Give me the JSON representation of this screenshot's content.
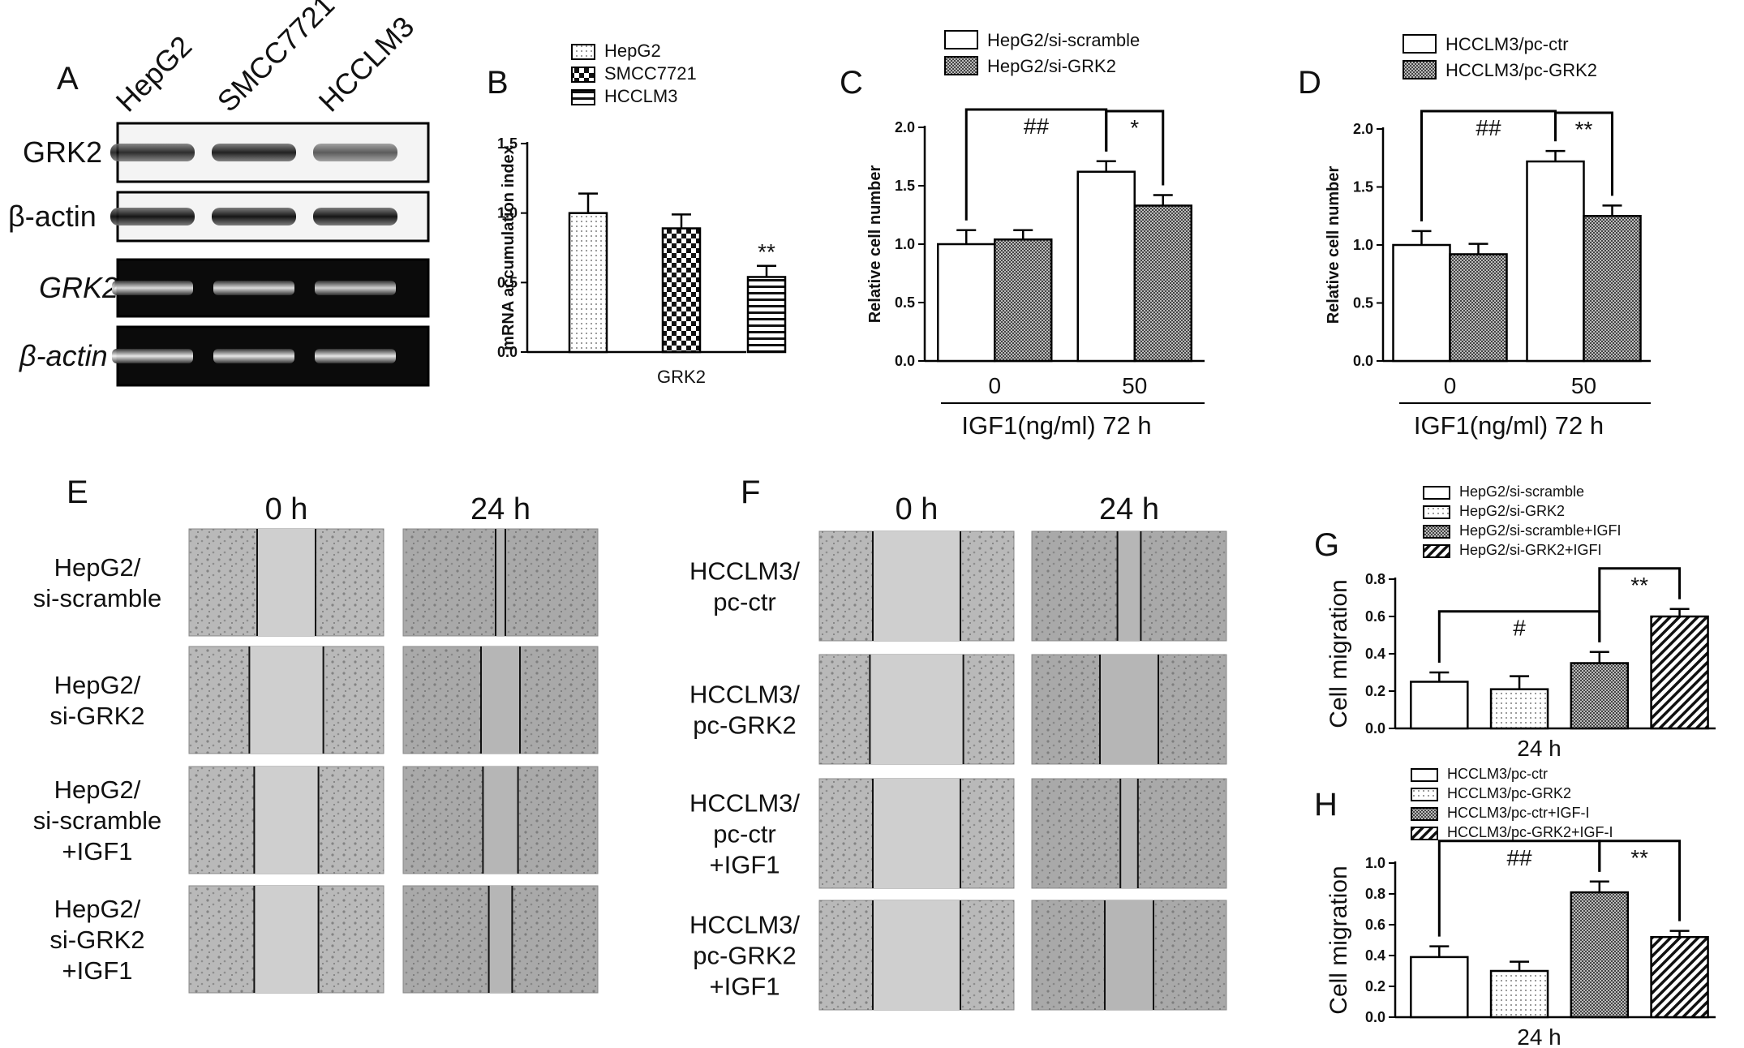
{
  "panel_a": {
    "letter": "A",
    "lanes": [
      "HepG2",
      "SMCC7721",
      "HCCLM3"
    ],
    "rows": [
      {
        "label": "GRK2",
        "italic": false,
        "kind": "western",
        "intensity": [
          0.85,
          0.9,
          0.65
        ]
      },
      {
        "label": "β-actin",
        "italic": false,
        "kind": "western",
        "intensity": [
          0.95,
          0.95,
          0.95
        ]
      },
      {
        "label": "GRK2",
        "italic": true,
        "kind": "pcr",
        "intensity": [
          0.9,
          0.9,
          0.85
        ]
      },
      {
        "label": "β-actin",
        "italic": true,
        "kind": "pcr",
        "intensity": [
          0.95,
          0.95,
          0.95
        ]
      }
    ]
  },
  "chart_data": [
    {
      "id": "B",
      "letter": "B",
      "type": "bar",
      "ylabel": "mRNA accumulation index",
      "ylim": [
        0,
        1.5
      ],
      "yticks": [
        "0.0",
        "0.5",
        "1.0",
        "1.5"
      ],
      "category_label": "GRK2",
      "legend": [
        "HepG2",
        "SMCC7721",
        "HCCLM3"
      ],
      "series": [
        {
          "name": "HepG2",
          "values": [
            1.0
          ],
          "err": [
            0.14
          ],
          "fill": "dots"
        },
        {
          "name": "SMCC7721",
          "values": [
            0.89
          ],
          "err": [
            0.1
          ],
          "fill": "check"
        },
        {
          "name": "HCCLM3",
          "values": [
            0.54
          ],
          "err": [
            0.08
          ],
          "fill": "hstripe"
        }
      ],
      "annotations": [
        {
          "text": "**",
          "series": 2
        }
      ]
    },
    {
      "id": "C",
      "letter": "C",
      "type": "bar",
      "ylabel": "Relative cell number",
      "ylim": [
        0,
        2.0
      ],
      "yticks": [
        "0.0",
        "0.5",
        "1.0",
        "1.5",
        "2.0"
      ],
      "categories": [
        "0",
        "50"
      ],
      "xlabel": "IGF1(ng/ml)  72 h",
      "legend": [
        "HepG2/si-scramble",
        "HepG2/si-GRK2"
      ],
      "series": [
        {
          "name": "HepG2/si-scramble",
          "values": [
            1.0,
            1.62
          ],
          "err": [
            0.12,
            0.09
          ],
          "fill": "white"
        },
        {
          "name": "HepG2/si-GRK2",
          "values": [
            1.04,
            1.33
          ],
          "err": [
            0.08,
            0.09
          ],
          "fill": "dense"
        }
      ],
      "brackets": [
        {
          "text": "##",
          "from": [
            0,
            0
          ],
          "to": [
            1,
            0
          ]
        },
        {
          "text": "*",
          "from": [
            1,
            0
          ],
          "to": [
            1,
            1
          ]
        }
      ]
    },
    {
      "id": "D",
      "letter": "D",
      "type": "bar",
      "ylabel": "Relative cell number",
      "ylim": [
        0,
        2.0
      ],
      "yticks": [
        "0.0",
        "0.5",
        "1.0",
        "1.5",
        "2.0"
      ],
      "categories": [
        "0",
        "50"
      ],
      "xlabel": "IGF1(ng/ml)  72 h",
      "legend": [
        "HCCLM3/pc-ctr",
        "HCCLM3/pc-GRK2"
      ],
      "series": [
        {
          "name": "HCCLM3/pc-ctr",
          "values": [
            1.0,
            1.72
          ],
          "err": [
            0.12,
            0.09
          ],
          "fill": "white"
        },
        {
          "name": "HCCLM3/pc-GRK2",
          "values": [
            0.92,
            1.25
          ],
          "err": [
            0.09,
            0.09
          ],
          "fill": "dense"
        }
      ],
      "brackets": [
        {
          "text": "##",
          "from": [
            0,
            0
          ],
          "to": [
            1,
            0
          ]
        },
        {
          "text": "**",
          "from": [
            1,
            0
          ],
          "to": [
            1,
            1
          ]
        }
      ]
    },
    {
      "id": "G",
      "letter": "G",
      "type": "bar",
      "ylabel": "Cell migration",
      "ylim": [
        0,
        0.8
      ],
      "yticks": [
        "0.0",
        "0.2",
        "0.4",
        "0.6",
        "0.8"
      ],
      "xlabel": "24 h",
      "legend": [
        "HepG2/si-scramble",
        "HepG2/si-GRK2",
        "HepG2/si-scramble+IGFI",
        "HepG2/si-GRK2+IGFI"
      ],
      "series": [
        {
          "name": "HepG2/si-scramble",
          "values": [
            0.25
          ],
          "err": [
            0.05
          ],
          "fill": "white"
        },
        {
          "name": "HepG2/si-GRK2",
          "values": [
            0.21
          ],
          "err": [
            0.07
          ],
          "fill": "dots"
        },
        {
          "name": "HepG2/si-scramble+IGFI",
          "values": [
            0.35
          ],
          "err": [
            0.06
          ],
          "fill": "dense"
        },
        {
          "name": "HepG2/si-GRK2+IGFI",
          "values": [
            0.6
          ],
          "err": [
            0.04
          ],
          "fill": "diag"
        }
      ],
      "brackets": [
        {
          "text": "#",
          "from": [
            0
          ],
          "to": [
            2
          ]
        },
        {
          "text": "**",
          "from": [
            2
          ],
          "to": [
            3
          ]
        }
      ]
    },
    {
      "id": "H",
      "letter": "H",
      "type": "bar",
      "ylabel": "Cell migration",
      "ylim": [
        0,
        1.0
      ],
      "yticks": [
        "0.0",
        "0.2",
        "0.4",
        "0.6",
        "0.8",
        "1.0"
      ],
      "xlabel": "24 h",
      "legend": [
        "HCCLM3/pc-ctr",
        "HCCLM3/pc-GRK2",
        "HCCLM3/pc-ctr+IGF-I",
        "HCCLM3/pc-GRK2+IGF-I"
      ],
      "series": [
        {
          "name": "HCCLM3/pc-ctr",
          "values": [
            0.39
          ],
          "err": [
            0.07
          ],
          "fill": "white"
        },
        {
          "name": "HCCLM3/pc-GRK2",
          "values": [
            0.3
          ],
          "err": [
            0.06
          ],
          "fill": "dots"
        },
        {
          "name": "HCCLM3/pc-ctr+IGF-I",
          "values": [
            0.81
          ],
          "err": [
            0.07
          ],
          "fill": "dense"
        },
        {
          "name": "HCCLM3/pc-GRK2+IGF-I",
          "values": [
            0.52
          ],
          "err": [
            0.04
          ],
          "fill": "diag"
        }
      ],
      "brackets": [
        {
          "text": "##",
          "from": [
            0
          ],
          "to": [
            2
          ]
        },
        {
          "text": "**",
          "from": [
            2
          ],
          "to": [
            3
          ]
        }
      ]
    }
  ],
  "panel_e": {
    "letter": "E",
    "times": [
      "0 h",
      "24 h"
    ],
    "rows": [
      {
        "lines": [
          "HepG2/",
          "si-scramble"
        ],
        "gap": [
          0.3,
          0.05
        ]
      },
      {
        "lines": [
          "HepG2/",
          "si-GRK2"
        ],
        "gap": [
          0.38,
          0.2
        ]
      },
      {
        "lines": [
          "HepG2/",
          "si-scramble",
          "+IGF1"
        ],
        "gap": [
          0.33,
          0.18
        ]
      },
      {
        "lines": [
          "HepG2/",
          "si-GRK2",
          "+IGF1"
        ],
        "gap": [
          0.33,
          0.12
        ]
      }
    ]
  },
  "panel_f": {
    "letter": "F",
    "times": [
      "0 h",
      "24 h"
    ],
    "rows": [
      {
        "lines": [
          "HCCLM3/",
          "pc-ctr"
        ],
        "gap": [
          0.45,
          0.12
        ]
      },
      {
        "lines": [
          "HCCLM3/",
          "pc-GRK2"
        ],
        "gap": [
          0.48,
          0.3
        ]
      },
      {
        "lines": [
          "HCCLM3/",
          "pc-ctr",
          "+IGF1"
        ],
        "gap": [
          0.45,
          0.09
        ]
      },
      {
        "lines": [
          "HCCLM3/",
          "pc-GRK2",
          "+IGF1"
        ],
        "gap": [
          0.45,
          0.25
        ]
      }
    ]
  }
}
